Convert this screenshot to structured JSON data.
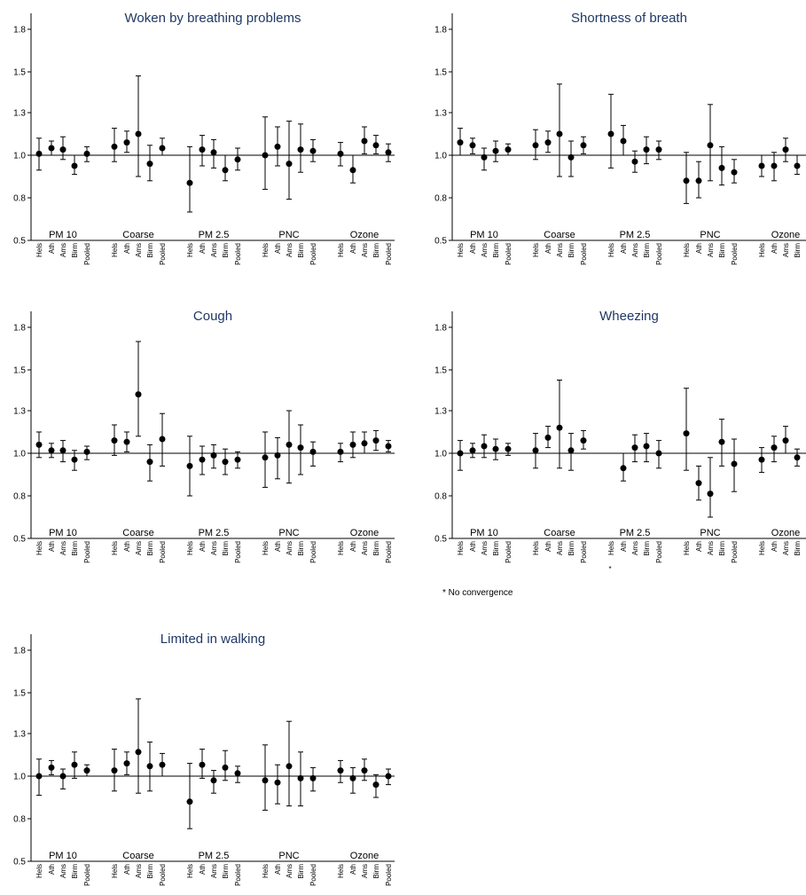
{
  "chart_data": [
    {
      "type": "scatter",
      "title": "Woken by breathing problems",
      "ylim": [
        0.5,
        1.9
      ],
      "yticks": [
        "0.5",
        "0.8",
        "1.0",
        "1.3",
        "1.5",
        "1.8"
      ],
      "reference_line": 1.0,
      "groups": [
        "PM 10",
        "Coarse",
        "PM 2.5",
        "PNC",
        "Ozone"
      ],
      "categories": [
        "Hels",
        "Ath",
        "Ams",
        "Birm",
        "Pooled"
      ],
      "points": [
        {
          "group": "PM 10",
          "values": [
            [
              1.01,
              0.93,
              1.12
            ],
            [
              1.05,
              1.0,
              1.1
            ],
            [
              1.04,
              0.98,
              1.13
            ],
            [
              0.95,
              0.91,
              1.0
            ],
            [
              1.01,
              0.97,
              1.06
            ]
          ]
        },
        {
          "group": "Coarse",
          "values": [
            [
              1.06,
              0.97,
              1.19
            ],
            [
              1.09,
              1.02,
              1.17
            ],
            [
              1.15,
              0.9,
              1.48
            ],
            [
              0.96,
              0.88,
              1.07
            ],
            [
              1.05,
              1.0,
              1.12
            ]
          ]
        },
        {
          "group": "PM 2.5",
          "values": [
            [
              0.87,
              0.7,
              1.06
            ],
            [
              1.04,
              0.95,
              1.14
            ],
            [
              1.02,
              0.94,
              1.11
            ],
            [
              0.93,
              0.88,
              1.0
            ],
            [
              0.98,
              0.93,
              1.05
            ]
          ]
        },
        {
          "group": "PNC",
          "values": [
            [
              1.0,
              0.84,
              1.27
            ],
            [
              1.06,
              0.95,
              1.2
            ],
            [
              0.96,
              0.79,
              1.24
            ],
            [
              1.04,
              0.92,
              1.22
            ],
            [
              1.03,
              0.97,
              1.11
            ]
          ]
        },
        {
          "group": "Ozone",
          "values": [
            [
              1.01,
              0.95,
              1.09
            ],
            [
              0.93,
              0.87,
              1.0
            ],
            [
              1.1,
              1.01,
              1.2
            ],
            [
              1.07,
              1.01,
              1.14
            ],
            [
              1.02,
              0.97,
              1.08
            ]
          ]
        }
      ]
    },
    {
      "type": "scatter",
      "title": "Shortness of breath",
      "ylim": [
        0.5,
        1.9
      ],
      "yticks": [
        "0.5",
        "0.8",
        "1.0",
        "1.3",
        "1.5",
        "1.8"
      ],
      "reference_line": 1.0,
      "groups": [
        "PM 10",
        "Coarse",
        "PM 2.5",
        "PNC",
        "Ozone"
      ],
      "categories": [
        "Hels",
        "Ath",
        "Ams",
        "Birm",
        "Pooled"
      ],
      "points": [
        {
          "group": "PM 10",
          "values": [
            [
              1.09,
              1.0,
              1.19
            ],
            [
              1.07,
              1.01,
              1.12
            ],
            [
              0.99,
              0.93,
              1.05
            ],
            [
              1.03,
              0.97,
              1.1
            ],
            [
              1.04,
              1.0,
              1.08
            ]
          ]
        },
        {
          "group": "Coarse",
          "values": [
            [
              1.07,
              0.98,
              1.18
            ],
            [
              1.09,
              1.02,
              1.17
            ],
            [
              1.15,
              0.9,
              1.44
            ],
            [
              0.99,
              0.9,
              1.1
            ],
            [
              1.07,
              1.01,
              1.13
            ]
          ]
        },
        {
          "group": "PM 2.5",
          "values": [
            [
              1.15,
              0.94,
              1.39
            ],
            [
              1.1,
              1.0,
              1.21
            ],
            [
              0.97,
              0.92,
              1.03
            ],
            [
              1.04,
              0.96,
              1.13
            ],
            [
              1.04,
              0.98,
              1.1
            ]
          ]
        },
        {
          "group": "PNC",
          "values": [
            [
              0.88,
              0.76,
              1.02
            ],
            [
              0.88,
              0.8,
              0.97
            ],
            [
              1.07,
              0.88,
              1.34
            ],
            [
              0.94,
              0.86,
              1.06
            ],
            [
              0.92,
              0.87,
              0.98
            ]
          ]
        },
        {
          "group": "Ozone",
          "values": [
            [
              0.95,
              0.9,
              1.0
            ],
            [
              0.95,
              0.88,
              1.02
            ],
            [
              1.04,
              0.97,
              1.12
            ],
            [
              0.95,
              0.91,
              1.0
            ],
            [
              0.96,
              0.92,
              1.01
            ]
          ]
        }
      ]
    },
    {
      "type": "scatter",
      "title": "Cough",
      "ylim": [
        0.5,
        1.9
      ],
      "yticks": [
        "0.5",
        "0.8",
        "1.0",
        "1.3",
        "1.5",
        "1.8"
      ],
      "reference_line": 1.0,
      "groups": [
        "PM 10",
        "Coarse",
        "PM 2.5",
        "PNC",
        "Ozone"
      ],
      "categories": [
        "Hels",
        "Ath",
        "Ams",
        "Birm",
        "Pooled"
      ],
      "points": [
        {
          "group": "PM 10",
          "values": [
            [
              1.06,
              0.98,
              1.15
            ],
            [
              1.02,
              0.98,
              1.07
            ],
            [
              1.02,
              0.96,
              1.09
            ],
            [
              0.97,
              0.92,
              1.02
            ],
            [
              1.01,
              0.97,
              1.05
            ]
          ]
        },
        {
          "group": "Coarse",
          "values": [
            [
              1.09,
              0.99,
              1.2
            ],
            [
              1.08,
              1.01,
              1.15
            ],
            [
              1.38,
              1.12,
              1.7
            ],
            [
              0.96,
              0.87,
              1.06
            ],
            [
              1.1,
              0.94,
              1.28
            ]
          ]
        },
        {
          "group": "PM 2.5",
          "values": [
            [
              0.94,
              0.8,
              1.12
            ],
            [
              0.97,
              0.9,
              1.05
            ],
            [
              0.99,
              0.93,
              1.06
            ],
            [
              0.96,
              0.9,
              1.03
            ],
            [
              0.97,
              0.93,
              1.01
            ]
          ]
        },
        {
          "group": "PNC",
          "values": [
            [
              0.98,
              0.84,
              1.15
            ],
            [
              0.99,
              0.88,
              1.11
            ],
            [
              1.06,
              0.86,
              1.3
            ],
            [
              1.04,
              0.9,
              1.2
            ],
            [
              1.01,
              0.94,
              1.08
            ]
          ]
        },
        {
          "group": "Ozone",
          "values": [
            [
              1.01,
              0.96,
              1.07
            ],
            [
              1.06,
              0.98,
              1.15
            ],
            [
              1.07,
              1.0,
              1.15
            ],
            [
              1.09,
              1.02,
              1.16
            ],
            [
              1.05,
              1.01,
              1.09
            ]
          ]
        }
      ]
    },
    {
      "type": "scatter",
      "title": "Wheezing",
      "ylim": [
        0.5,
        1.9
      ],
      "yticks": [
        "0.5",
        "0.8",
        "1.0",
        "1.3",
        "1.5",
        "1.8"
      ],
      "reference_line": 1.0,
      "groups": [
        "PM 10",
        "Coarse",
        "PM 2.5",
        "PNC",
        "Ozone"
      ],
      "categories": [
        "Hels",
        "Ath",
        "Ams",
        "Birm",
        "Pooled"
      ],
      "no_convergence_marker": {
        "group": "PM 2.5",
        "category": "Hels",
        "text": "*"
      },
      "footnote": "* No convergence",
      "points": [
        {
          "group": "PM 10",
          "values": [
            [
              1.0,
              0.92,
              1.09
            ],
            [
              1.02,
              0.98,
              1.07
            ],
            [
              1.05,
              0.98,
              1.13
            ],
            [
              1.03,
              0.97,
              1.1
            ],
            [
              1.03,
              0.99,
              1.07
            ]
          ]
        },
        {
          "group": "Coarse",
          "values": [
            [
              1.02,
              0.93,
              1.14
            ],
            [
              1.11,
              1.04,
              1.19
            ],
            [
              1.18,
              0.93,
              1.45
            ],
            [
              1.02,
              0.92,
              1.14
            ],
            [
              1.09,
              1.03,
              1.16
            ]
          ]
        },
        {
          "group": "PM 2.5",
          "values": [
            null,
            [
              0.93,
              0.87,
              1.0
            ],
            [
              1.04,
              0.96,
              1.13
            ],
            [
              1.05,
              0.96,
              1.14
            ],
            [
              1.0,
              0.93,
              1.09
            ]
          ]
        },
        {
          "group": "PNC",
          "values": [
            [
              1.14,
              0.92,
              1.41
            ],
            [
              0.86,
              0.77,
              0.94
            ],
            [
              0.81,
              0.65,
              0.98
            ],
            [
              1.08,
              0.94,
              1.24
            ],
            [
              0.95,
              0.82,
              1.1
            ]
          ]
        },
        {
          "group": "Ozone",
          "values": [
            [
              0.97,
              0.91,
              1.04
            ],
            [
              1.04,
              0.96,
              1.12
            ],
            [
              1.09,
              1.0,
              1.19
            ],
            [
              0.98,
              0.94,
              1.03
            ],
            [
              1.01,
              0.96,
              1.06
            ]
          ]
        }
      ]
    },
    {
      "type": "scatter",
      "title": "Limited in walking",
      "ylim": [
        0.5,
        1.9
      ],
      "yticks": [
        "0.5",
        "0.8",
        "1.0",
        "1.3",
        "1.5",
        "1.8"
      ],
      "reference_line": 1.0,
      "groups": [
        "PM 10",
        "Coarse",
        "PM 2.5",
        "PNC",
        "Ozone"
      ],
      "categories": [
        "Hels",
        "Ath",
        "Ams",
        "Birm",
        "Pooled"
      ],
      "points": [
        {
          "group": "PM 10",
          "values": [
            [
              1.0,
              0.91,
              1.12
            ],
            [
              1.06,
              1.01,
              1.11
            ],
            [
              1.0,
              0.94,
              1.05
            ],
            [
              1.08,
              0.99,
              1.17
            ],
            [
              1.04,
              1.0,
              1.08
            ]
          ]
        },
        {
          "group": "Coarse",
          "values": [
            [
              1.04,
              0.93,
              1.19
            ],
            [
              1.09,
              1.01,
              1.17
            ],
            [
              1.17,
              0.92,
              1.47
            ],
            [
              1.07,
              0.93,
              1.24
            ],
            [
              1.08,
              1.0,
              1.16
            ]
          ]
        },
        {
          "group": "PM 2.5",
          "values": [
            [
              0.88,
              0.73,
              1.09
            ],
            [
              1.08,
              0.99,
              1.19
            ],
            [
              0.98,
              0.92,
              1.04
            ],
            [
              1.06,
              0.98,
              1.18
            ],
            [
              1.02,
              0.97,
              1.07
            ]
          ]
        },
        {
          "group": "PNC",
          "values": [
            [
              0.98,
              0.84,
              1.22
            ],
            [
              0.97,
              0.87,
              1.08
            ],
            [
              1.07,
              0.86,
              1.36
            ],
            [
              0.99,
              0.86,
              1.17
            ],
            [
              0.99,
              0.93,
              1.06
            ]
          ]
        },
        {
          "group": "Ozone",
          "values": [
            [
              1.04,
              0.97,
              1.11
            ],
            [
              0.99,
              0.92,
              1.06
            ],
            [
              1.04,
              0.98,
              1.12
            ],
            [
              0.96,
              0.9,
              1.01
            ],
            [
              1.0,
              0.96,
              1.05
            ]
          ]
        }
      ]
    }
  ]
}
